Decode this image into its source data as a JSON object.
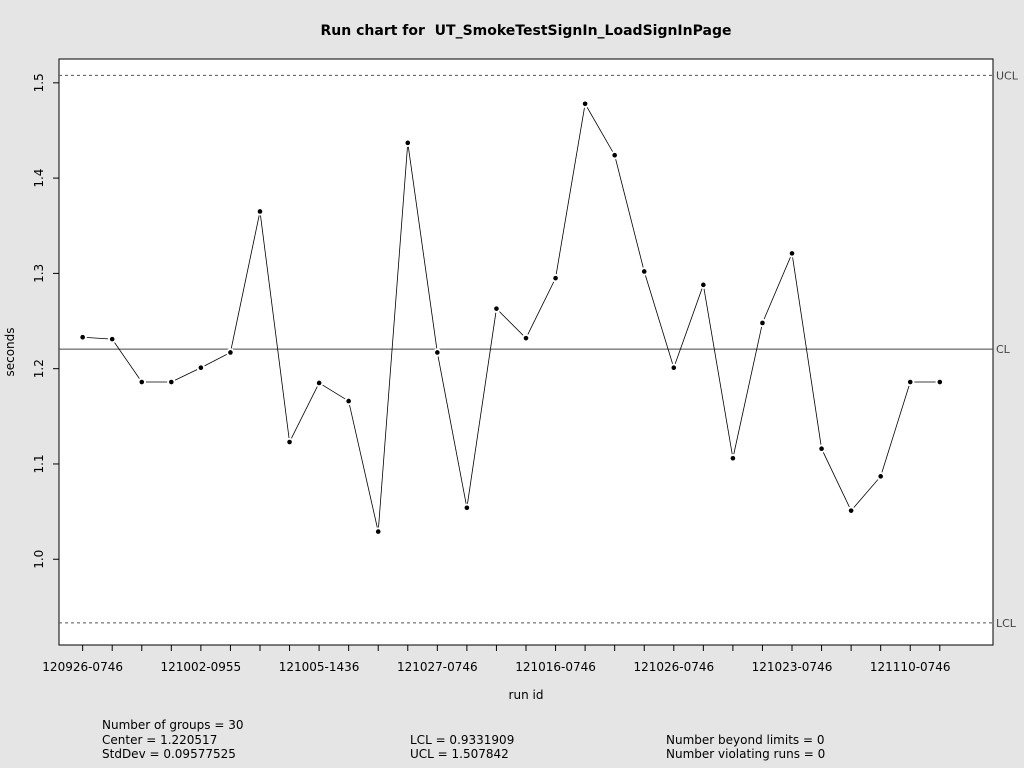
{
  "chart_data": {
    "type": "line",
    "title": "Run chart for  UT_SmokeTestSignIn_LoadSignInPage",
    "xlabel": "run id",
    "ylabel": "seconds",
    "ylim": [
      0.91,
      1.525
    ],
    "xlim": [
      0.2,
      31.8
    ],
    "yticks": [
      1.0,
      1.1,
      1.2,
      1.3,
      1.4,
      1.5
    ],
    "xtick_positions": [
      1,
      5,
      9,
      13,
      17,
      21,
      25,
      29
    ],
    "xtick_labels": [
      "120926-0746",
      "121002-0955",
      "121005-1436",
      "121027-0746",
      "121016-0746",
      "121026-0746",
      "121023-0746",
      "121110-0746"
    ],
    "values": [
      1.233,
      1.231,
      1.186,
      1.186,
      1.201,
      1.217,
      1.365,
      1.123,
      1.185,
      1.166,
      1.029,
      1.437,
      1.217,
      1.054,
      1.263,
      1.232,
      1.295,
      1.478,
      1.424,
      1.302,
      1.201,
      1.288,
      1.106,
      1.248,
      1.321,
      1.116,
      1.051,
      1.087,
      1.186,
      1.186
    ],
    "control_lines": [
      {
        "name": "UCL",
        "value": 1.507842,
        "style": "dashed"
      },
      {
        "name": "CL",
        "value": 1.220517,
        "style": "solid"
      },
      {
        "name": "LCL",
        "value": 0.9331909,
        "style": "dashed"
      }
    ],
    "stats": {
      "groups": "Number of groups = 30",
      "center": "Center = 1.220517",
      "stddev": "StdDev = 0.09577525",
      "lcl": "LCL = 0.9331909",
      "ucl": "UCL = 1.507842",
      "beyond": "Number beyond limits = 0",
      "violating": "Number violating runs = 0"
    }
  }
}
